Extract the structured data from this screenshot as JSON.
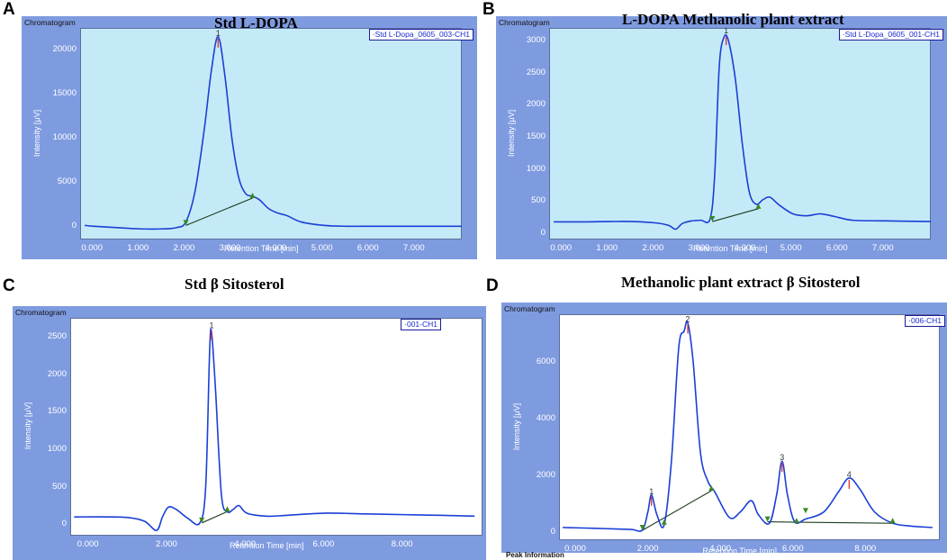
{
  "charts": [
    {
      "panel": "A",
      "title": "Std L-DOPA",
      "chromatogram_label": "Chromatogram",
      "legend": "Std L-Dopa_0605_003-CH1",
      "xlabel": "Retention Time [min]",
      "ylabel": "Intensity [μV]",
      "xticks": [
        "0.000",
        "1.000",
        "2.000",
        "3.000",
        "4.000",
        "5.000",
        "6.000",
        "7.000"
      ],
      "yticks": [
        "0",
        "5000",
        "10000",
        "15000",
        "20000"
      ],
      "peaks": [
        {
          "label": "1",
          "x": 2.7,
          "y": 21500
        }
      ],
      "markers": [
        {
          "x": 2.0,
          "y": 100,
          "dir": "down"
        },
        {
          "x": 3.45,
          "y": 3200,
          "dir": "up"
        }
      ]
    },
    {
      "panel": "B",
      "title": "L-DOPA Methanolic plant extract",
      "chromatogram_label": "Chromatogram",
      "legend": "Std L-Dopa_0605_001-CH1",
      "xlabel": "Retention Time [min]",
      "ylabel": "Intensity [μV]",
      "xticks": [
        "0.000",
        "1.000",
        "2.000",
        "3.000",
        "4.000",
        "5.000",
        "6.000",
        "7.000"
      ],
      "yticks": [
        "0",
        "500",
        "1000",
        "1500",
        "2000",
        "2500",
        "3000"
      ],
      "peaks": [
        {
          "label": "1",
          "x": 3.55,
          "y": 3100
        }
      ],
      "markers": [
        {
          "x": 3.25,
          "y": 180,
          "dir": "down"
        },
        {
          "x": 4.25,
          "y": 380,
          "dir": "up"
        }
      ]
    },
    {
      "panel": "C",
      "title": "Std β Sitosterol",
      "chromatogram_label": "Chromatogram",
      "legend": "001-CH1",
      "xlabel": "Retention Time [min]",
      "ylabel": "Intensity [μV]",
      "xticks": [
        "0.000",
        "2.000",
        "4.000",
        "6.000",
        "8.000"
      ],
      "yticks": [
        "0",
        "500",
        "1000",
        "1500",
        "2000",
        "2500"
      ],
      "peaks": [
        {
          "label": "1",
          "x": 3.1,
          "y": 2600
        }
      ],
      "markers": [
        {
          "x": 2.85,
          "y": 20,
          "dir": "down"
        },
        {
          "x": 3.5,
          "y": 170,
          "dir": "up"
        }
      ]
    },
    {
      "panel": "D",
      "title": "Methanolic plant extract β Sitosterol",
      "chromatogram_label": "Chromatogram",
      "legend": "006-CH1",
      "xlabel": "Retention Time [min]",
      "ylabel": "Intensity [μV]",
      "xticks": [
        "0.000",
        "2.000",
        "4.000",
        "6.000",
        "8.000"
      ],
      "yticks": [
        "0",
        "2000",
        "4000",
        "6000"
      ],
      "peaks": [
        {
          "label": "1",
          "x": 2.05,
          "y": 1300
        },
        {
          "label": "2",
          "x": 3.05,
          "y": 7400
        },
        {
          "label": "3",
          "x": 5.65,
          "y": 2500
        },
        {
          "label": "4",
          "x": 7.5,
          "y": 1900
        }
      ],
      "markers": [
        {
          "x": 1.8,
          "y": 50,
          "dir": "down"
        },
        {
          "x": 2.4,
          "y": 250,
          "dir": "up"
        },
        {
          "x": 3.7,
          "y": 1450,
          "dir": "up"
        },
        {
          "x": 5.25,
          "y": 350,
          "dir": "down"
        },
        {
          "x": 6.05,
          "y": 300,
          "dir": "up"
        },
        {
          "x": 6.3,
          "y": 650,
          "dir": "down"
        },
        {
          "x": 8.7,
          "y": 300,
          "dir": "up"
        }
      ],
      "footer": "Peak Information"
    }
  ],
  "chart_data": [
    {
      "type": "line",
      "title": "Std L-DOPA",
      "xlabel": "Retention Time [min]",
      "ylabel": "Intensity [μV]",
      "xlim": [
        -0.3,
        8.0
      ],
      "ylim": [
        -1500,
        22500
      ],
      "x": [
        -0.2,
        0.0,
        0.5,
        1.0,
        1.5,
        1.8,
        2.0,
        2.2,
        2.4,
        2.55,
        2.7,
        2.85,
        3.0,
        3.15,
        3.3,
        3.45,
        3.6,
        3.8,
        4.0,
        4.2,
        4.5,
        5.0,
        5.5,
        6.0,
        6.5,
        7.0,
        7.5,
        8.0
      ],
      "y": [
        100,
        0,
        -150,
        -300,
        -300,
        -150,
        500,
        4000,
        11000,
        17500,
        21500,
        17000,
        10000,
        5500,
        3700,
        3400,
        3000,
        2000,
        1500,
        1200,
        500,
        100,
        0,
        0,
        0,
        0,
        0,
        0
      ],
      "series": [
        {
          "name": "Std L-Dopa_0605_003-CH1"
        }
      ]
    },
    {
      "type": "line",
      "title": "L-DOPA Methanolic plant extract",
      "xlabel": "Retention Time [min]",
      "ylabel": "Intensity [μV]",
      "xlim": [
        -0.3,
        8.0
      ],
      "ylim": [
        -100,
        3200
      ],
      "x": [
        -0.2,
        0.5,
        1.0,
        1.5,
        2.0,
        2.3,
        2.45,
        2.6,
        2.8,
        3.0,
        3.2,
        3.3,
        3.4,
        3.5,
        3.6,
        3.75,
        3.9,
        4.05,
        4.2,
        4.35,
        4.5,
        4.7,
        5.0,
        5.3,
        5.6,
        5.9,
        6.3,
        7.0,
        8.0
      ],
      "y": [
        175,
        175,
        180,
        180,
        160,
        120,
        60,
        150,
        190,
        200,
        220,
        900,
        2600,
        3050,
        3000,
        2400,
        1400,
        650,
        450,
        520,
        560,
        440,
        300,
        270,
        300,
        260,
        200,
        190,
        180
      ],
      "series": [
        {
          "name": "Std L-Dopa_0605_001-CH1"
        }
      ]
    },
    {
      "type": "line",
      "title": "Std β Sitosterol",
      "xlabel": "Retention Time [min]",
      "ylabel": "Intensity [μV]",
      "xlim": [
        -0.5,
        10.0
      ],
      "ylim": [
        -150,
        2750
      ],
      "x": [
        -0.4,
        0.5,
        1.0,
        1.4,
        1.7,
        1.85,
        2.0,
        2.2,
        2.5,
        2.8,
        2.95,
        3.05,
        3.1,
        3.2,
        3.35,
        3.5,
        3.65,
        3.8,
        4.0,
        4.5,
        5.0,
        6.0,
        7.0,
        8.0,
        9.0,
        9.8
      ],
      "y": [
        100,
        100,
        90,
        40,
        -80,
        100,
        230,
        200,
        80,
        20,
        500,
        2300,
        2550,
        1800,
        400,
        170,
        200,
        250,
        150,
        110,
        120,
        150,
        140,
        130,
        120,
        110
      ],
      "series": [
        {
          "name": "001-CH1"
        }
      ]
    },
    {
      "type": "line",
      "title": "Methanolic plant extract β Sitosterol",
      "xlabel": "Retention Time [min]",
      "ylabel": "Intensity [μV]",
      "xlim": [
        -0.5,
        10.0
      ],
      "ylim": [
        -300,
        7700
      ],
      "x": [
        -0.4,
        0.5,
        1.0,
        1.5,
        1.8,
        1.95,
        2.05,
        2.2,
        2.4,
        2.6,
        2.8,
        2.95,
        3.05,
        3.2,
        3.4,
        3.6,
        3.8,
        4.2,
        4.5,
        4.8,
        5.0,
        5.3,
        5.5,
        5.65,
        5.8,
        6.0,
        6.3,
        6.8,
        7.2,
        7.5,
        7.8,
        8.2,
        8.7,
        9.2,
        9.8
      ],
      "y": [
        150,
        120,
        100,
        80,
        60,
        700,
        1300,
        600,
        250,
        2500,
        6500,
        7100,
        7400,
        6000,
        2800,
        1800,
        1400,
        500,
        700,
        1100,
        600,
        300,
        1300,
        2500,
        1300,
        350,
        450,
        700,
        1400,
        1900,
        1500,
        700,
        300,
        200,
        150
      ],
      "series": [
        {
          "name": "006-CH1"
        }
      ]
    }
  ],
  "colors": {
    "frame": "#7f9be0",
    "plot_bg_A": "#c5eaf7",
    "plot_bg_white": "#ffffff",
    "trace": "#1b3fd6",
    "baseline": "#1d3c1f",
    "marker": "#3a8a22",
    "peak_tick": "#e02020"
  }
}
